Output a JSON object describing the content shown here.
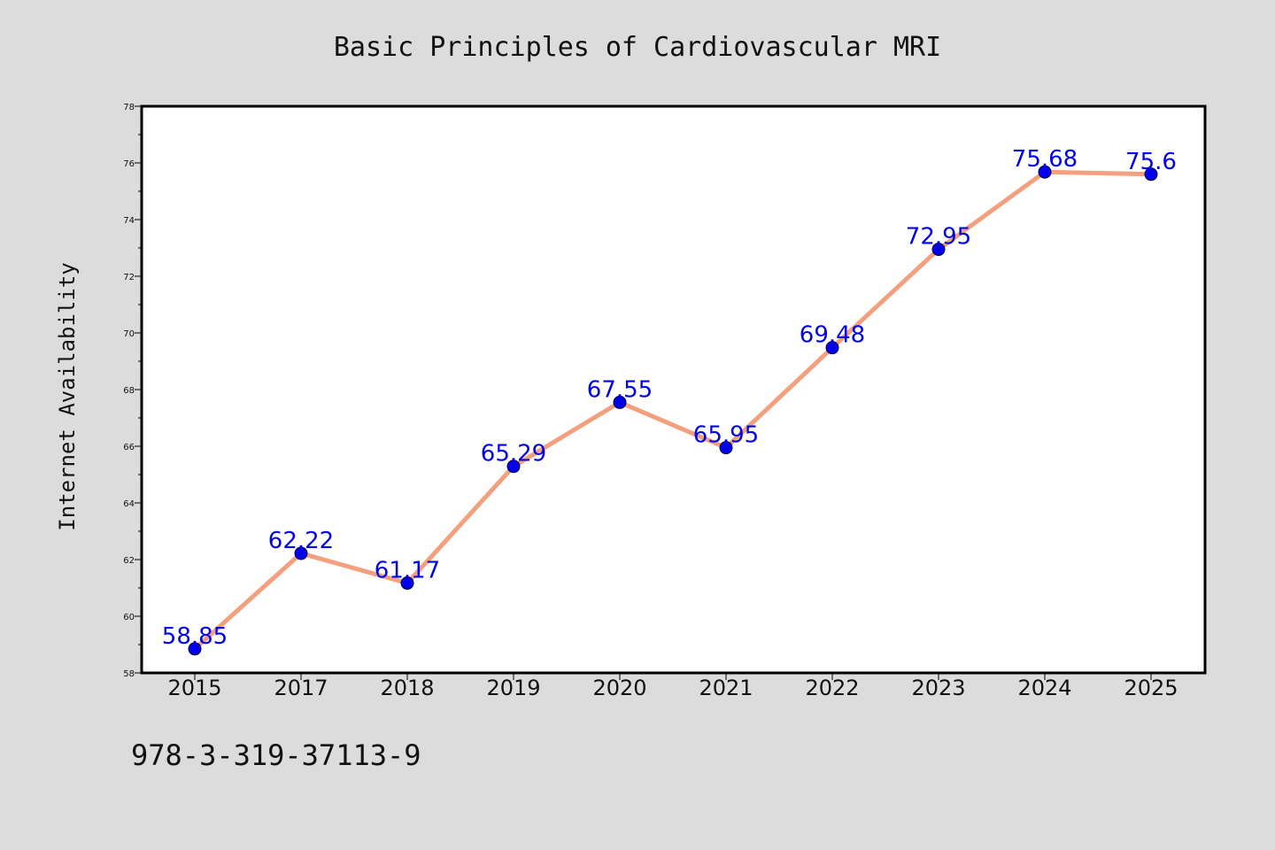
{
  "chart_data": {
    "type": "line",
    "title": "Basic Principles of Cardiovascular MRI",
    "xlabel": "",
    "ylabel": "Internet Availability",
    "categories": [
      "2015",
      "2017",
      "2018",
      "2019",
      "2020",
      "2021",
      "2022",
      "2023",
      "2024",
      "2025"
    ],
    "series": [
      {
        "values": [
          58.85,
          62.22,
          61.17,
          65.29,
          67.55,
          65.95,
          69.48,
          72.95,
          75.68,
          75.6
        ],
        "labels": [
          "58.85",
          "62.22",
          "61.17",
          "65.29",
          "67.55",
          "65.95",
          "69.48",
          "72.95",
          "75.68",
          "75.6"
        ]
      }
    ],
    "ylim": [
      58,
      78
    ],
    "yticks": [
      "58",
      "60",
      "62",
      "64",
      "66",
      "68",
      "70",
      "72",
      "74",
      "76",
      "78"
    ],
    "grid": false,
    "colors": {
      "line": "#f4a07e",
      "marker": "#0000ee",
      "label": "#0000ee",
      "background": "#dcdcdc",
      "plot_background": "#ffffff"
    }
  },
  "footer": {
    "isbn": "978-3-319-37113-9"
  }
}
